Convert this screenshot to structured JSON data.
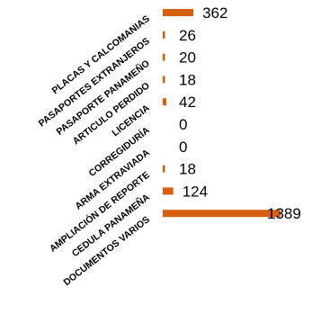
{
  "chart_data": {
    "type": "bar",
    "orientation": "horizontal",
    "categories": [
      "PLACAS Y CALCOMANIAS",
      "PASAPORTES EXTRANJEROS",
      "PASAPORTE PANAMEÑO",
      "ARTICULO PERDIDO",
      "LICENCIA",
      "CORREGIDURÍA",
      "ARMA EXTRAVIADA",
      "AMPLIACIÓN DE REPORTE",
      "CEDULA PANAMEÑA",
      "DOCUMENTOS VARIOS"
    ],
    "values": [
      362,
      26,
      20,
      18,
      42,
      0,
      0,
      18,
      124,
      1389
    ],
    "data_labels": [
      "362",
      "26",
      "20",
      "18",
      "42",
      "0",
      "0",
      "18",
      "124",
      "1389"
    ],
    "colors": {
      "bar": "#D55E0F"
    },
    "grid": false,
    "legend": "none"
  }
}
